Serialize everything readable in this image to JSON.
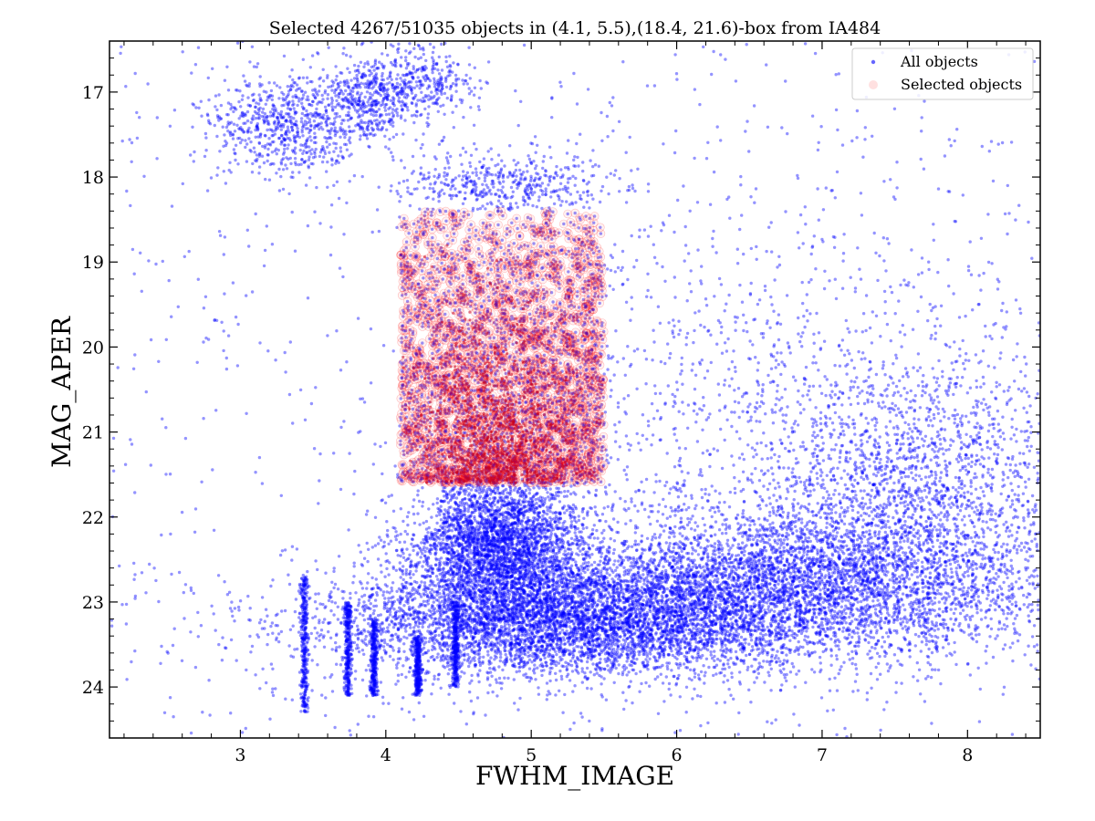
{
  "chart_data": {
    "type": "scatter",
    "title": "Selected 4267/51035 objects in (4.1, 5.5),(18.4, 21.6)-box from IA484",
    "xlabel": "FWHM_IMAGE",
    "ylabel": "MAG_APER",
    "xlim": [
      2.1,
      8.5
    ],
    "ylim": [
      24.6,
      16.4
    ],
    "y_inverted": true,
    "grid": false,
    "legend_placement": "top-right",
    "x_ticks": [
      3,
      4,
      5,
      6,
      7,
      8
    ],
    "y_ticks": [
      17,
      18,
      19,
      20,
      21,
      22,
      23,
      24
    ],
    "selection_box": {
      "x": [
        4.1,
        5.5
      ],
      "y": [
        18.4,
        21.6
      ]
    },
    "counts": {
      "selected": 4267,
      "total": 51035
    },
    "series": [
      {
        "name": "All objects",
        "color": "#0000ff",
        "density_regions": [
          {
            "x_mean": 3.3,
            "x_sd": 0.25,
            "y_mean": 17.4,
            "y_sd": 0.3,
            "weight": 4
          },
          {
            "x_mean": 3.85,
            "x_sd": 0.2,
            "y_mean": 17.1,
            "y_sd": 0.25,
            "weight": 3
          },
          {
            "x_mean": 4.25,
            "x_sd": 0.2,
            "y_mean": 16.9,
            "y_sd": 0.2,
            "weight": 2
          },
          {
            "x_mean": 4.8,
            "x_sd": 0.35,
            "y_mean": 18.1,
            "y_sd": 0.2,
            "weight": 3
          },
          {
            "x_mean": 4.75,
            "x_sd": 0.3,
            "y_mean": 22.3,
            "y_sd": 0.45,
            "weight": 22
          },
          {
            "x_mean": 5.2,
            "x_sd": 0.8,
            "y_mean": 23.2,
            "y_sd": 0.35,
            "weight": 34
          },
          {
            "x_mean": 6.8,
            "x_sd": 0.9,
            "y_mean": 22.8,
            "y_sd": 0.45,
            "weight": 30
          },
          {
            "x_mean": 7.6,
            "x_sd": 0.6,
            "y_mean": 21.6,
            "y_sd": 0.8,
            "weight": 12
          },
          {
            "x_mean": 6.2,
            "x_sd": 1.1,
            "y_mean": 20.5,
            "y_sd": 1.3,
            "weight": 6
          }
        ],
        "streaks": [
          {
            "x": 3.44,
            "y_range": [
              22.7,
              24.3
            ]
          },
          {
            "x": 3.74,
            "y_range": [
              23.0,
              24.1
            ]
          },
          {
            "x": 3.92,
            "y_range": [
              23.2,
              24.1
            ]
          },
          {
            "x": 4.22,
            "y_range": [
              23.4,
              24.1
            ]
          },
          {
            "x": 4.48,
            "y_range": [
              23.0,
              24.0
            ]
          }
        ]
      },
      {
        "name": "Selected objects",
        "color": "#ff0000",
        "x_range": [
          4.1,
          5.5
        ],
        "y_range": [
          18.4,
          21.6
        ],
        "density_peak": {
          "x": 4.75,
          "y": 21.4
        }
      }
    ]
  }
}
